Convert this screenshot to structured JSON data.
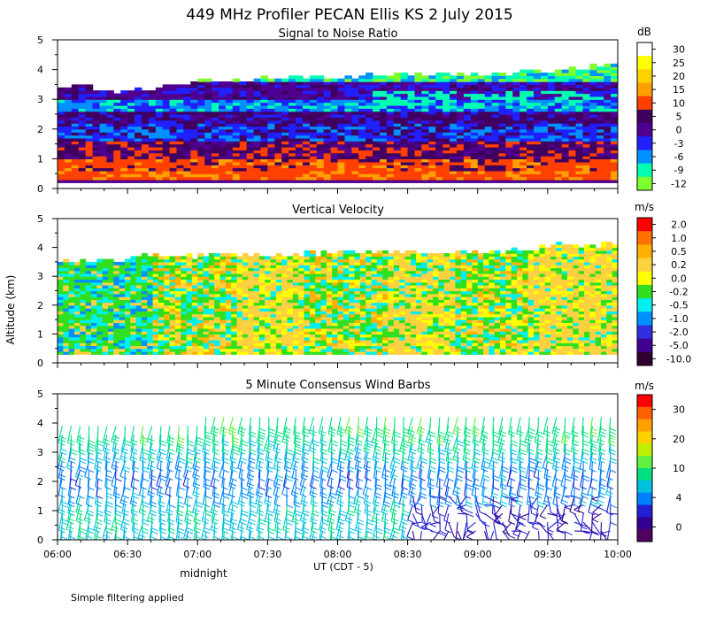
{
  "figure": {
    "title": "449 MHz Profiler PECAN Ellis KS   2 July 2015",
    "y_axis_label": "Altitude (km)",
    "x_axis_label": "UT  (CDT - 5)",
    "x_sublabel": "midnight",
    "footnote": "Simple filtering applied"
  },
  "chart_data": [
    {
      "type": "heatmap",
      "title": "Signal to Noise Ratio",
      "xlabel": "UT  (CDT - 5)",
      "ylabel": "Altitude (km)",
      "x_ticks": [
        "06:00",
        "06:30",
        "07:00",
        "07:30",
        "08:00",
        "08:30",
        "09:00",
        "09:30",
        "10:00"
      ],
      "y_ticks": [
        "0",
        "1",
        "2",
        "3",
        "4",
        "5"
      ],
      "ylim": [
        0,
        5
      ],
      "colorbar_unit": "dB",
      "colorbar_labels": [
        "30",
        "25",
        "20",
        "15",
        "10",
        "5",
        "0",
        "-3",
        "-6",
        "-9",
        "-12"
      ],
      "colorbar_colors": [
        "#ffffff",
        "#ffff00",
        "#ffd200",
        "#ffa000",
        "#ff4000",
        "#400060",
        "#500090",
        "#2020ff",
        "#0090ff",
        "#00ffb0",
        "#80ff30"
      ],
      "layers_km": [
        {
          "from": 0.3,
          "to": 0.6,
          "level": "10 to 15 dB"
        },
        {
          "from": 0.6,
          "to": 1.6,
          "level": "5 to 15 dB"
        },
        {
          "from": 1.6,
          "to": 2.2,
          "level": "-6 to 5 dB"
        },
        {
          "from": 2.2,
          "to": 2.6,
          "level": "0 to 5 dB"
        },
        {
          "from": 2.6,
          "to": 3.0,
          "level": "-9 to -3 dB"
        },
        {
          "from": 3.0,
          "to": 3.6,
          "level": "-6 to 5 dB"
        },
        {
          "from": 3.6,
          "to": 4.1,
          "level": "-12 to -6 dB"
        }
      ]
    },
    {
      "type": "heatmap",
      "title": "Vertical Velocity",
      "xlabel": "UT  (CDT - 5)",
      "ylabel": "Altitude (km)",
      "x_ticks": [
        "06:00",
        "06:30",
        "07:00",
        "07:30",
        "08:00",
        "08:30",
        "09:00",
        "09:30",
        "10:00"
      ],
      "y_ticks": [
        "0",
        "1",
        "2",
        "3",
        "4",
        "5"
      ],
      "ylim": [
        0,
        5
      ],
      "colorbar_unit": "m/s",
      "colorbar_labels": [
        "2.0",
        "1.0",
        "0.5",
        "0.2",
        "0.0",
        "-0.2",
        "-0.5",
        "-1.0",
        "-2.0",
        "-5.0",
        "-10.0"
      ],
      "colorbar_colors": [
        "#ff0000",
        "#ff7000",
        "#ffb000",
        "#ffd040",
        "#ffff00",
        "#30e020",
        "#00f0f0",
        "#0090ff",
        "#3030e0",
        "#400090",
        "#300030"
      ],
      "regimes": [
        {
          "from": "06:00",
          "to": "06:40",
          "dominant": "-0.2 to -0.5 (down)"
        },
        {
          "from": "06:40",
          "to": "07:15",
          "dominant": "mixed"
        },
        {
          "from": "07:15",
          "to": "07:45",
          "dominant": "0.2 to 0.5 (up)"
        },
        {
          "from": "07:45",
          "to": "08:20",
          "dominant": "mixed"
        },
        {
          "from": "08:20",
          "to": "08:50",
          "dominant": "0.2 to 0.5 (up)"
        },
        {
          "from": "08:50",
          "to": "09:20",
          "dominant": "mixed"
        },
        {
          "from": "09:20",
          "to": "10:00",
          "dominant": "0.2 to 0.5 (up)"
        }
      ],
      "top_km": [
        {
          "x": "06:00",
          "y": 3.4
        },
        {
          "x": "06:30",
          "y": 3.6
        },
        {
          "x": "07:00",
          "y": 3.7
        },
        {
          "x": "07:30",
          "y": 3.7
        },
        {
          "x": "08:00",
          "y": 3.8
        },
        {
          "x": "08:30",
          "y": 3.8
        },
        {
          "x": "09:00",
          "y": 3.8
        },
        {
          "x": "09:30",
          "y": 4.0
        },
        {
          "x": "10:00",
          "y": 4.1
        }
      ]
    },
    {
      "type": "scatter",
      "title": "5 Minute Consensus Wind Barbs",
      "xlabel": "UT  (CDT - 5)",
      "ylabel": "Altitude (km)",
      "x_ticks": [
        "06:00",
        "06:30",
        "07:00",
        "07:30",
        "08:00",
        "08:30",
        "09:00",
        "09:30",
        "10:00"
      ],
      "y_ticks": [
        "0",
        "1",
        "2",
        "3",
        "4",
        "5"
      ],
      "ylim": [
        0,
        5
      ],
      "colorbar_unit": "m/s",
      "colorbar_labels": [
        "30",
        "20",
        "10",
        "4",
        "0"
      ],
      "colorbar_colors": [
        "#ff0000",
        "#ff6000",
        "#ffa000",
        "#ffd000",
        "#c0f000",
        "#60f040",
        "#00e080",
        "#00c0e0",
        "#0080ff",
        "#2020d0",
        "#300090",
        "#500060"
      ],
      "speed_by_altitude": [
        {
          "altitude_km": 0.5,
          "speed_ms": 12
        },
        {
          "altitude_km": 1.0,
          "speed_ms": 13
        },
        {
          "altitude_km": 1.5,
          "speed_ms": 12
        },
        {
          "altitude_km": 2.0,
          "speed_ms": 9
        },
        {
          "altitude_km": 2.5,
          "speed_ms": 8
        },
        {
          "altitude_km": 3.0,
          "speed_ms": 10
        },
        {
          "altitude_km": 3.5,
          "speed_ms": 13
        },
        {
          "altitude_km": 4.0,
          "speed_ms": 15
        }
      ]
    }
  ]
}
